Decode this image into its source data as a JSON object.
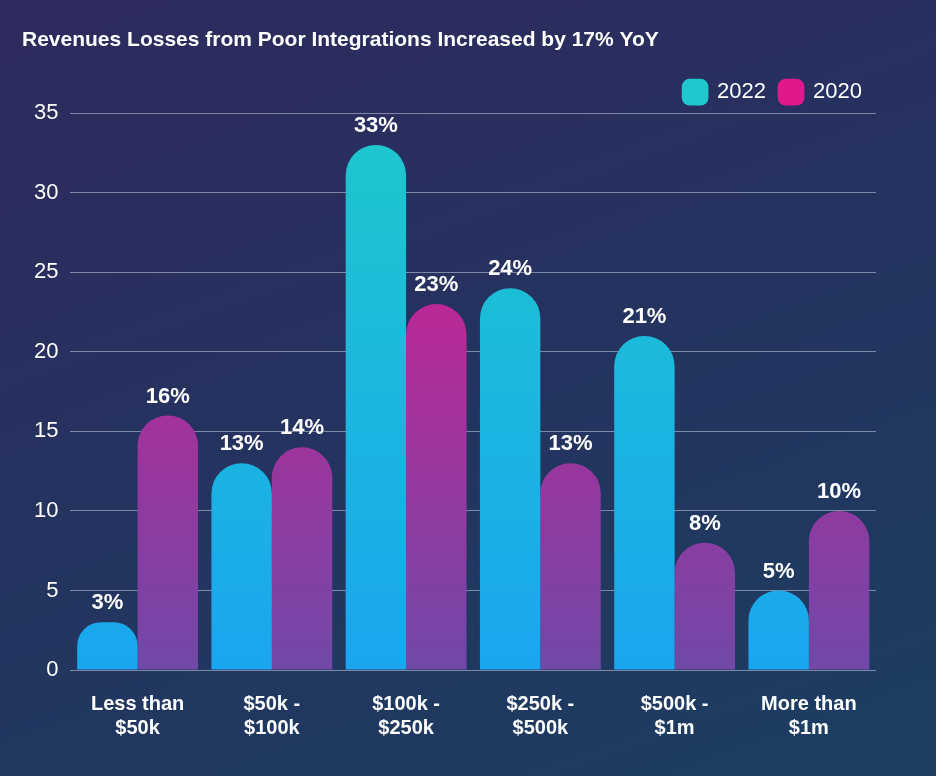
{
  "chart_data": {
    "type": "bar",
    "title": "Revenues Losses from Poor Integrations Increased by 17% YoY",
    "categories": [
      [
        "Less than",
        "$50k"
      ],
      [
        "$50k -",
        "$100k"
      ],
      [
        "$100k -",
        "$250k"
      ],
      [
        "$250k -",
        "$500k"
      ],
      [
        "$500k -",
        "$1m"
      ],
      [
        "More than",
        "$1m"
      ]
    ],
    "series": [
      {
        "name": "2022",
        "color": "#1ec8cc",
        "values": [
          3,
          13,
          33,
          24,
          21,
          5
        ],
        "value_labels": [
          "3%",
          "13%",
          "33%",
          "24%",
          "21%",
          "5%"
        ]
      },
      {
        "name": "2020",
        "color": "#e0188c",
        "values": [
          16,
          14,
          23,
          13,
          8,
          10
        ],
        "value_labels": [
          "16%",
          "14%",
          "23%",
          "13%",
          "8%",
          "10%"
        ]
      }
    ],
    "ylim": [
      0,
      35
    ],
    "yticks": [
      0,
      5,
      10,
      15,
      20,
      25,
      30,
      35
    ],
    "grid": true,
    "legend": "top right",
    "data_labels": true
  }
}
